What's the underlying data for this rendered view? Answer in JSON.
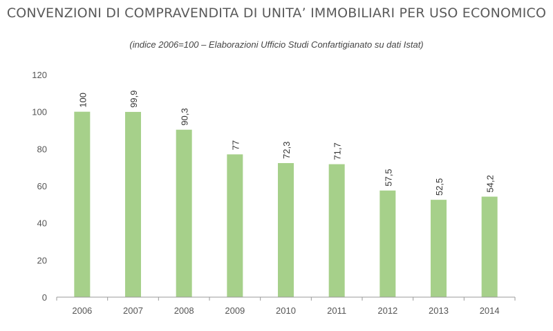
{
  "chart_data": {
    "type": "bar",
    "title": "CONVENZIONI DI COMPRAVENDITA DI UNITA’ IMMOBILIARI PER USO ECONOMICO",
    "subtitle": "(indice 2006=100 – Elaborazioni Ufficio Studi Confartigianato su dati Istat)",
    "categories": [
      "2006",
      "2007",
      "2008",
      "2009",
      "2010",
      "2011",
      "2012",
      "2013",
      "2014"
    ],
    "values": [
      100,
      99.9,
      90.3,
      77,
      72.3,
      71.7,
      57.5,
      52.5,
      54.2
    ],
    "value_labels": [
      "100",
      "99,9",
      "90,3",
      "77",
      "72,3",
      "71,7",
      "57,5",
      "52,5",
      "54,2"
    ],
    "yticks": [
      "0",
      "20",
      "40",
      "60",
      "80",
      "100",
      "120"
    ],
    "ylim": [
      0,
      120
    ],
    "grid": false,
    "bar_color": "#a6d08a",
    "axis_color": "#999999"
  }
}
